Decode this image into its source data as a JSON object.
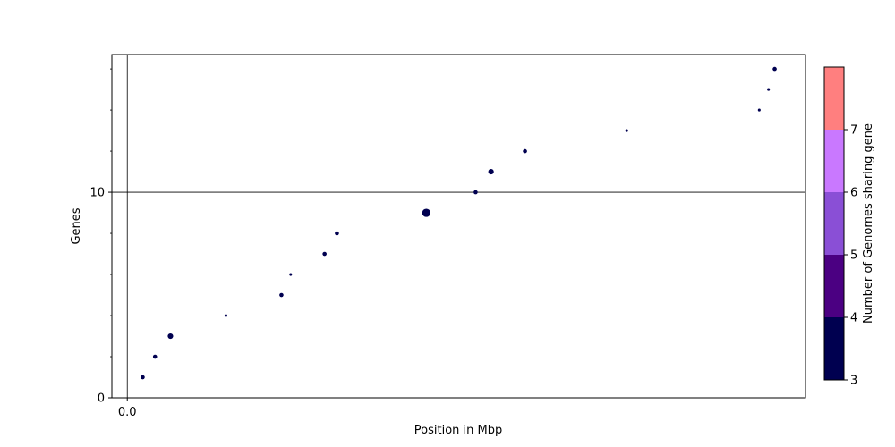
{
  "chart_data": {
    "type": "scatter",
    "title": "",
    "xlabel": "Position in Mbp",
    "ylabel": "Genes",
    "x_ticks": [
      {
        "value": 0.0,
        "label": "0.0"
      }
    ],
    "y_ticks": [
      {
        "value": 0,
        "label": "0"
      },
      {
        "value": 10,
        "label": "10"
      }
    ],
    "xlim": [
      -0.05,
      2.2
    ],
    "ylim": [
      0,
      16.7
    ],
    "marker_color": "#000050",
    "reference_lines": {
      "vertical_x": 0.0,
      "horizontal_y": 10
    },
    "points": [
      {
        "gene": 1,
        "x": 0.05,
        "size": 3
      },
      {
        "gene": 2,
        "x": 0.09,
        "size": 3
      },
      {
        "gene": 3,
        "x": 0.14,
        "size": 4
      },
      {
        "gene": 4,
        "x": 0.32,
        "size": 2
      },
      {
        "gene": 5,
        "x": 0.5,
        "size": 3
      },
      {
        "gene": 6,
        "x": 0.53,
        "size": 2
      },
      {
        "gene": 7,
        "x": 0.64,
        "size": 3
      },
      {
        "gene": 8,
        "x": 0.68,
        "size": 3
      },
      {
        "gene": 9,
        "x": 0.97,
        "size": 6
      },
      {
        "gene": 10,
        "x": 1.13,
        "size": 3
      },
      {
        "gene": 11,
        "x": 1.18,
        "size": 4
      },
      {
        "gene": 12,
        "x": 1.29,
        "size": 3
      },
      {
        "gene": 13,
        "x": 1.62,
        "size": 2
      },
      {
        "gene": 14,
        "x": 2.05,
        "size": 2
      },
      {
        "gene": 15,
        "x": 2.08,
        "size": 2
      },
      {
        "gene": 16,
        "x": 2.1,
        "size": 3
      }
    ],
    "colorbar": {
      "label": "Number of Genomes sharing gene",
      "range": [
        3,
        8
      ],
      "tick_labels": [
        "3",
        "4",
        "5",
        "6",
        "7"
      ],
      "bins": [
        {
          "from": 3,
          "to": 4,
          "color": "#000050"
        },
        {
          "from": 4,
          "to": 5,
          "color": "#4b0082"
        },
        {
          "from": 5,
          "to": 6,
          "color": "#8a4fd6"
        },
        {
          "from": 6,
          "to": 7,
          "color": "#c978ff"
        },
        {
          "from": 7,
          "to": 8,
          "color": "#ff7f7f"
        }
      ]
    }
  }
}
